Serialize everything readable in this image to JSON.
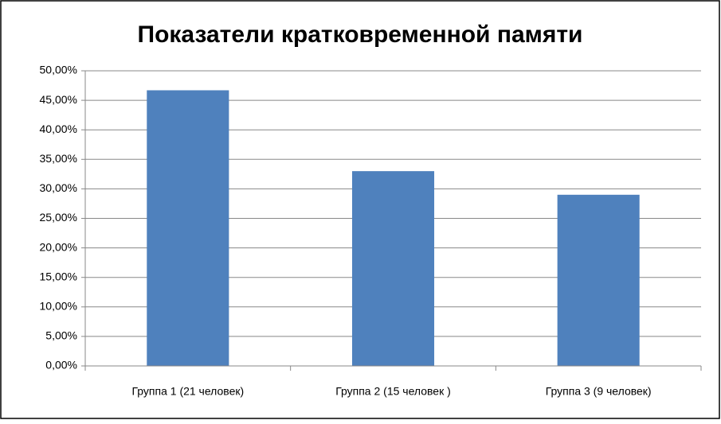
{
  "chart_data": {
    "type": "bar",
    "title": "Показатели кратковременной памяти",
    "categories": [
      "Группа 1 (21 человек)",
      "Группа 2 (15 человек )",
      "Группа 3 (9 человек)"
    ],
    "values": [
      46.7,
      33.0,
      29.0
    ],
    "color": "#4f81bd",
    "ylim": [
      0,
      50
    ],
    "yticks": [
      {
        "value": 0,
        "label": "0,00%"
      },
      {
        "value": 5,
        "label": "5,00%"
      },
      {
        "value": 10,
        "label": "10,00%"
      },
      {
        "value": 15,
        "label": "15,00%"
      },
      {
        "value": 20,
        "label": "20,00%"
      },
      {
        "value": 25,
        "label": "25,00%"
      },
      {
        "value": 30,
        "label": "30,00%"
      },
      {
        "value": 35,
        "label": "35,00%"
      },
      {
        "value": 40,
        "label": "40,00%"
      },
      {
        "value": 45,
        "label": "45,00%"
      },
      {
        "value": 50,
        "label": "50,00%"
      }
    ],
    "grid": true
  }
}
